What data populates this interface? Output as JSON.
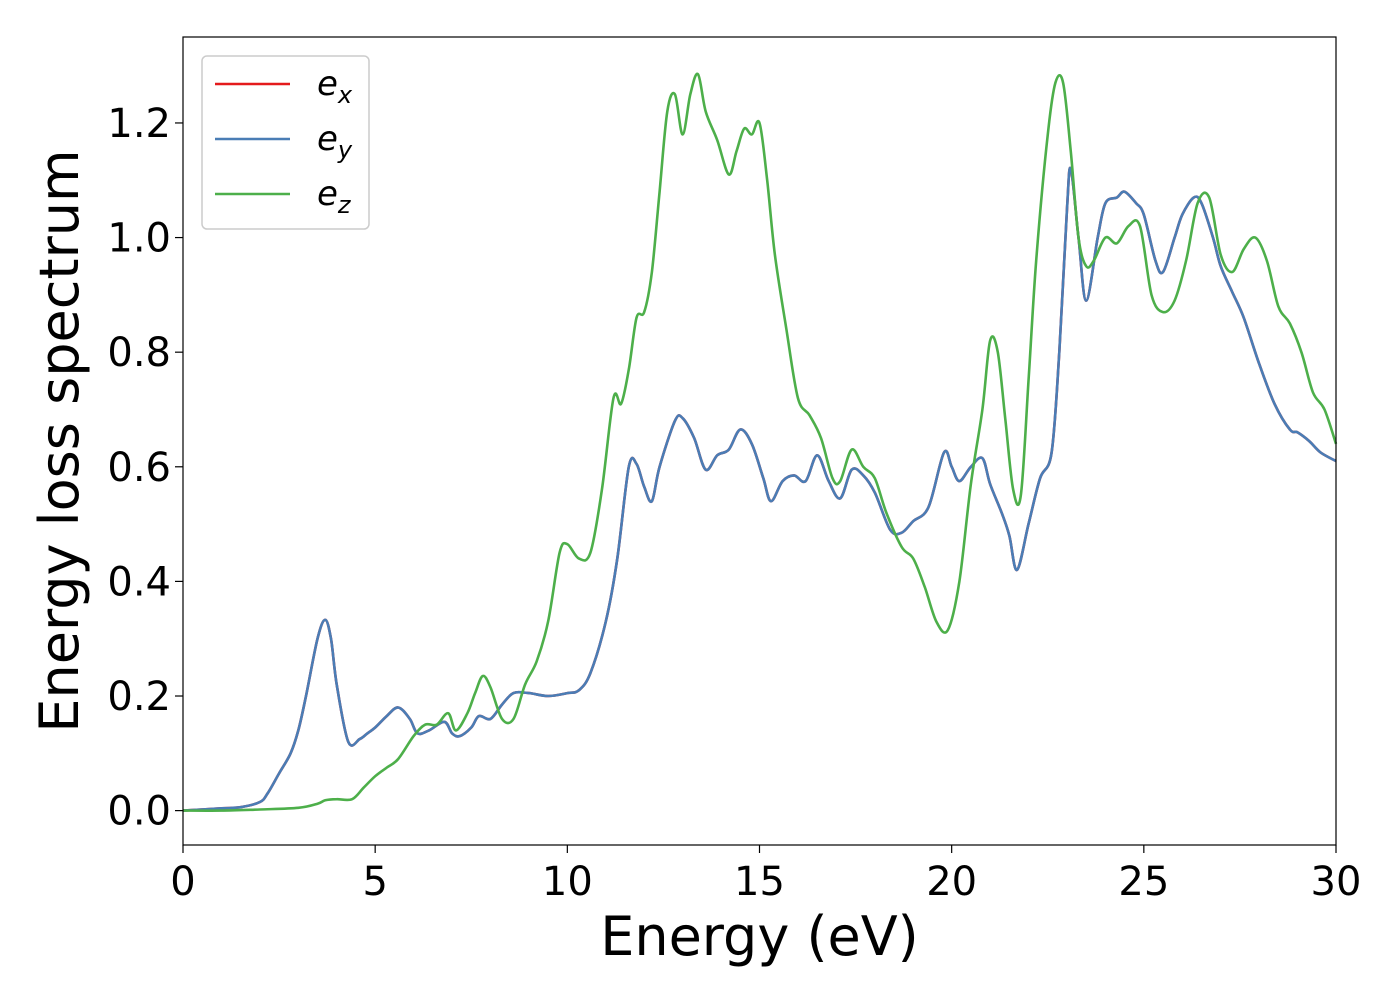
{
  "chart_data": {
    "type": "line",
    "title": "",
    "xlabel": "Energy (eV)",
    "ylabel": "Energy loss spectrum",
    "xlim": [
      0,
      30
    ],
    "ylim": [
      -0.06,
      1.35
    ],
    "x_ticks": [
      0,
      5,
      10,
      15,
      20,
      25,
      30
    ],
    "x_tick_labels": [
      "0",
      "5",
      "10",
      "15",
      "20",
      "25",
      "30"
    ],
    "y_ticks": [
      0.0,
      0.2,
      0.4,
      0.6,
      0.8,
      1.0,
      1.2
    ],
    "y_tick_labels": [
      "0.0",
      "0.2",
      "0.4",
      "0.6",
      "0.8",
      "1.0",
      "1.2"
    ],
    "grid": false,
    "legend_position": "upper left",
    "series": [
      {
        "name": "e",
        "subscript": "x",
        "color": "#e41a1c",
        "x": [
          0,
          1,
          1.5,
          2,
          2.2,
          2.5,
          2.8,
          3.0,
          3.2,
          3.5,
          3.7,
          3.85,
          4.0,
          4.3,
          4.6,
          4.8,
          5.0,
          5.3,
          5.6,
          5.9,
          6.1,
          6.4,
          6.8,
          7.0,
          7.2,
          7.5,
          7.7,
          8.0,
          8.3,
          8.6,
          9.0,
          9.5,
          10.0,
          10.3,
          10.6,
          11.0,
          11.3,
          11.6,
          11.8,
          12.0,
          12.2,
          12.4,
          12.8,
          13.0,
          13.3,
          13.6,
          13.9,
          14.2,
          14.5,
          14.8,
          15.1,
          15.3,
          15.6,
          15.9,
          16.2,
          16.5,
          16.8,
          17.1,
          17.4,
          17.7,
          18.0,
          18.4,
          18.7,
          19.0,
          19.4,
          19.8,
          20.0,
          20.2,
          20.5,
          20.8,
          21.0,
          21.3,
          21.5,
          21.7,
          22.0,
          22.3,
          22.6,
          22.8,
          23.0,
          23.1,
          23.3,
          23.5,
          23.8,
          24.0,
          24.3,
          24.5,
          24.8,
          25.0,
          25.3,
          25.5,
          25.8,
          26.0,
          26.3,
          26.5,
          26.8,
          27.0,
          27.3,
          27.6,
          28.0,
          28.4,
          28.8,
          29.0,
          29.3,
          29.6,
          30.0
        ],
        "values": [
          0.0,
          0.004,
          0.006,
          0.015,
          0.03,
          0.065,
          0.1,
          0.14,
          0.2,
          0.3,
          0.333,
          0.3,
          0.22,
          0.12,
          0.125,
          0.135,
          0.145,
          0.165,
          0.18,
          0.16,
          0.135,
          0.14,
          0.155,
          0.135,
          0.13,
          0.145,
          0.165,
          0.16,
          0.185,
          0.205,
          0.205,
          0.2,
          0.205,
          0.21,
          0.24,
          0.33,
          0.44,
          0.6,
          0.605,
          0.565,
          0.54,
          0.6,
          0.68,
          0.685,
          0.65,
          0.595,
          0.62,
          0.63,
          0.665,
          0.64,
          0.58,
          0.54,
          0.575,
          0.585,
          0.575,
          0.62,
          0.575,
          0.545,
          0.595,
          0.585,
          0.555,
          0.49,
          0.485,
          0.505,
          0.53,
          0.625,
          0.6,
          0.575,
          0.6,
          0.615,
          0.57,
          0.52,
          0.48,
          0.42,
          0.5,
          0.58,
          0.625,
          0.8,
          1.05,
          1.12,
          1.0,
          0.89,
          1.0,
          1.06,
          1.07,
          1.08,
          1.06,
          1.04,
          0.96,
          0.94,
          1.0,
          1.04,
          1.07,
          1.06,
          1.0,
          0.95,
          0.905,
          0.86,
          0.78,
          0.71,
          0.665,
          0.66,
          0.645,
          0.625,
          0.61
        ]
      },
      {
        "name": "e",
        "subscript": "y",
        "color": "#4a7db5",
        "x": [
          0,
          1,
          1.5,
          2,
          2.2,
          2.5,
          2.8,
          3.0,
          3.2,
          3.5,
          3.7,
          3.85,
          4.0,
          4.3,
          4.6,
          4.8,
          5.0,
          5.3,
          5.6,
          5.9,
          6.1,
          6.4,
          6.8,
          7.0,
          7.2,
          7.5,
          7.7,
          8.0,
          8.3,
          8.6,
          9.0,
          9.5,
          10.0,
          10.3,
          10.6,
          11.0,
          11.3,
          11.6,
          11.8,
          12.0,
          12.2,
          12.4,
          12.8,
          13.0,
          13.3,
          13.6,
          13.9,
          14.2,
          14.5,
          14.8,
          15.1,
          15.3,
          15.6,
          15.9,
          16.2,
          16.5,
          16.8,
          17.1,
          17.4,
          17.7,
          18.0,
          18.4,
          18.7,
          19.0,
          19.4,
          19.8,
          20.0,
          20.2,
          20.5,
          20.8,
          21.0,
          21.3,
          21.5,
          21.7,
          22.0,
          22.3,
          22.6,
          22.8,
          23.0,
          23.1,
          23.3,
          23.5,
          23.8,
          24.0,
          24.3,
          24.5,
          24.8,
          25.0,
          25.3,
          25.5,
          25.8,
          26.0,
          26.3,
          26.5,
          26.8,
          27.0,
          27.3,
          27.6,
          28.0,
          28.4,
          28.8,
          29.0,
          29.3,
          29.6,
          30.0
        ],
        "values": [
          0.0,
          0.004,
          0.006,
          0.015,
          0.03,
          0.065,
          0.1,
          0.14,
          0.2,
          0.3,
          0.333,
          0.3,
          0.22,
          0.12,
          0.125,
          0.135,
          0.145,
          0.165,
          0.18,
          0.16,
          0.135,
          0.14,
          0.155,
          0.135,
          0.13,
          0.145,
          0.165,
          0.16,
          0.185,
          0.205,
          0.205,
          0.2,
          0.205,
          0.21,
          0.24,
          0.33,
          0.44,
          0.6,
          0.605,
          0.565,
          0.54,
          0.6,
          0.68,
          0.685,
          0.65,
          0.595,
          0.62,
          0.63,
          0.665,
          0.64,
          0.58,
          0.54,
          0.575,
          0.585,
          0.575,
          0.62,
          0.575,
          0.545,
          0.595,
          0.585,
          0.555,
          0.49,
          0.485,
          0.505,
          0.53,
          0.625,
          0.6,
          0.575,
          0.6,
          0.615,
          0.57,
          0.52,
          0.48,
          0.42,
          0.5,
          0.58,
          0.625,
          0.8,
          1.05,
          1.12,
          1.0,
          0.89,
          1.0,
          1.06,
          1.07,
          1.08,
          1.06,
          1.04,
          0.96,
          0.94,
          1.0,
          1.04,
          1.07,
          1.06,
          1.0,
          0.95,
          0.905,
          0.86,
          0.78,
          0.71,
          0.665,
          0.66,
          0.645,
          0.625,
          0.61
        ]
      },
      {
        "name": "e",
        "subscript": "z",
        "color": "#4daf4a",
        "x": [
          0,
          1,
          2,
          3,
          3.5,
          3.7,
          4.0,
          4.4,
          4.7,
          5.0,
          5.3,
          5.6,
          6.0,
          6.3,
          6.6,
          6.9,
          7.1,
          7.4,
          7.6,
          7.8,
          8.0,
          8.3,
          8.6,
          8.9,
          9.2,
          9.5,
          9.8,
          10.0,
          10.3,
          10.6,
          10.9,
          11.2,
          11.4,
          11.6,
          11.8,
          12.0,
          12.2,
          12.4,
          12.6,
          12.8,
          13.0,
          13.2,
          13.4,
          13.6,
          13.9,
          14.2,
          14.4,
          14.6,
          14.8,
          15.0,
          15.2,
          15.4,
          15.7,
          16.0,
          16.3,
          16.6,
          16.9,
          17.1,
          17.4,
          17.7,
          18.0,
          18.3,
          18.7,
          19.0,
          19.3,
          19.6,
          19.9,
          20.2,
          20.5,
          20.8,
          21.0,
          21.2,
          21.4,
          21.6,
          21.8,
          22.0,
          22.2,
          22.5,
          22.7,
          22.9,
          23.1,
          23.3,
          23.5,
          23.7,
          24.0,
          24.3,
          24.6,
          24.9,
          25.2,
          25.5,
          25.8,
          26.1,
          26.4,
          26.7,
          27.0,
          27.3,
          27.6,
          27.9,
          28.2,
          28.5,
          28.8,
          29.1,
          29.4,
          29.7,
          30.0
        ],
        "values": [
          0.0,
          0.0,
          0.002,
          0.005,
          0.012,
          0.018,
          0.02,
          0.02,
          0.04,
          0.06,
          0.075,
          0.09,
          0.13,
          0.15,
          0.15,
          0.17,
          0.14,
          0.17,
          0.205,
          0.235,
          0.215,
          0.16,
          0.16,
          0.22,
          0.26,
          0.33,
          0.45,
          0.465,
          0.44,
          0.45,
          0.56,
          0.72,
          0.71,
          0.77,
          0.86,
          0.87,
          0.94,
          1.08,
          1.22,
          1.25,
          1.18,
          1.25,
          1.285,
          1.22,
          1.17,
          1.11,
          1.15,
          1.19,
          1.18,
          1.2,
          1.1,
          0.97,
          0.84,
          0.72,
          0.69,
          0.65,
          0.58,
          0.575,
          0.63,
          0.6,
          0.58,
          0.52,
          0.46,
          0.44,
          0.39,
          0.33,
          0.315,
          0.4,
          0.57,
          0.7,
          0.82,
          0.8,
          0.68,
          0.56,
          0.55,
          0.75,
          0.96,
          1.18,
          1.27,
          1.27,
          1.15,
          1.0,
          0.95,
          0.96,
          1.0,
          0.99,
          1.02,
          1.02,
          0.9,
          0.87,
          0.89,
          0.96,
          1.06,
          1.07,
          0.97,
          0.94,
          0.98,
          1.0,
          0.96,
          0.88,
          0.85,
          0.8,
          0.73,
          0.7,
          0.64
        ]
      }
    ]
  }
}
